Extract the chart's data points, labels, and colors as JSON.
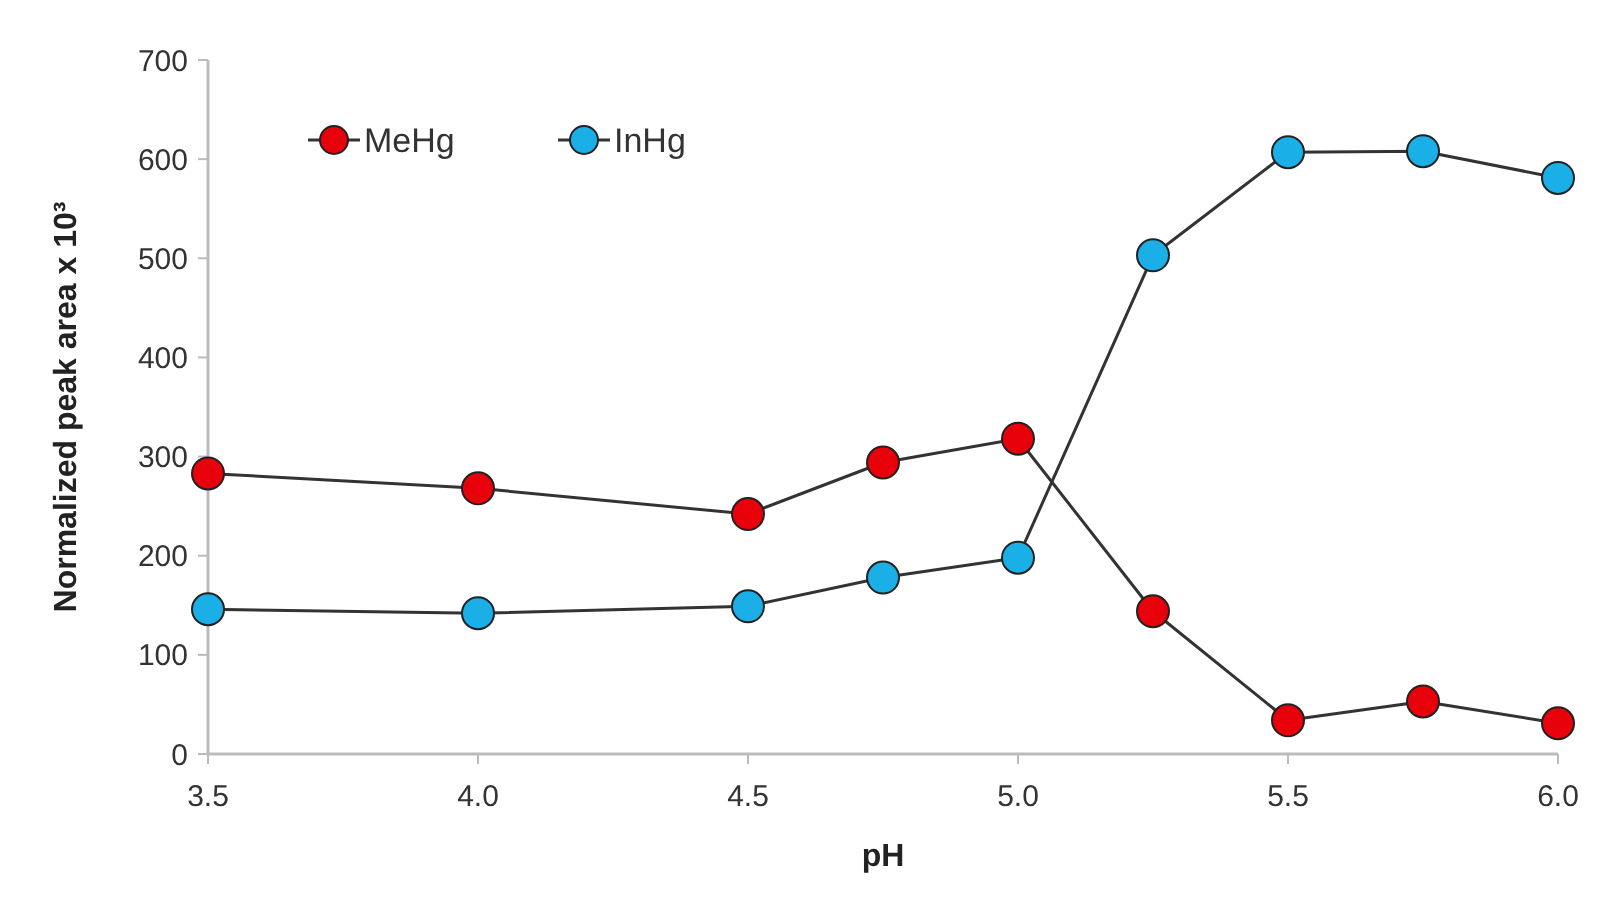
{
  "chart_data": {
    "type": "line",
    "xlabel": "pH",
    "ylabel": "Normalized peak area x 10³",
    "x": [
      3.5,
      4.0,
      4.5,
      4.75,
      5.0,
      5.25,
      5.5,
      5.75,
      6.0
    ],
    "series": [
      {
        "name": "MeHg",
        "color": "#e8000b",
        "values": [
          283,
          268,
          242,
          294,
          318,
          144,
          34,
          53,
          31
        ]
      },
      {
        "name": "InHg",
        "color": "#1aafe6",
        "values": [
          146,
          142,
          149,
          178,
          198,
          503,
          607,
          608,
          581
        ]
      }
    ],
    "xlim": [
      3.5,
      6.0
    ],
    "xticks": [
      {
        "value": 3.5,
        "label": "3.5"
      },
      {
        "value": 4.0,
        "label": "4.0"
      },
      {
        "value": 4.5,
        "label": "4.5"
      },
      {
        "value": 5.0,
        "label": "5.0"
      },
      {
        "value": 5.5,
        "label": "5.5"
      },
      {
        "value": 6.0,
        "label": "6.0"
      }
    ],
    "ylim": [
      0,
      700
    ],
    "yticks": [
      0,
      100,
      200,
      300,
      400,
      500,
      600,
      700
    ],
    "grid": false,
    "legend": "top left",
    "marker": "circle",
    "line_style": "solid"
  }
}
